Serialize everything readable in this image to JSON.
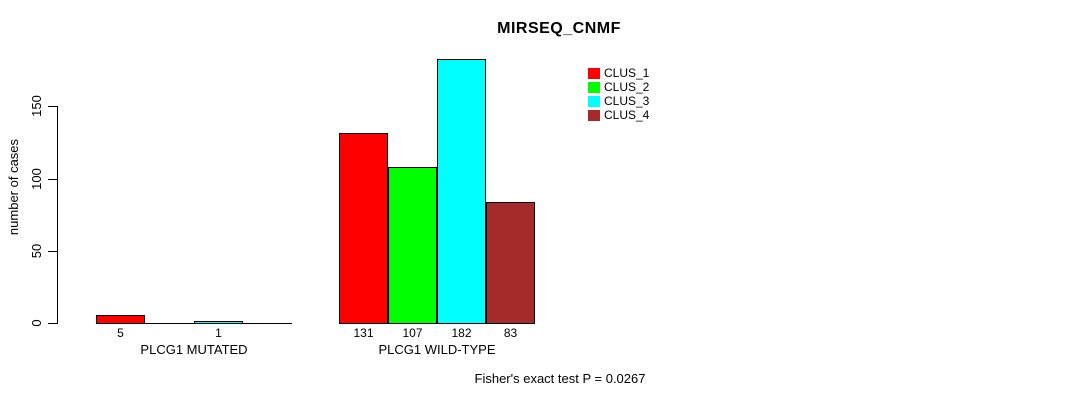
{
  "chart_data": {
    "type": "bar",
    "title": "MIRSEQ_CNMF",
    "ylabel": "number of cases",
    "xlabel": "",
    "groups": [
      "PLCG1 MUTATED",
      "PLCG1 WILD-TYPE"
    ],
    "series": [
      {
        "name": "CLUS_1",
        "color": "#ff0000",
        "values": [
          5,
          131
        ]
      },
      {
        "name": "CLUS_2",
        "color": "#00ff00",
        "values": [
          0,
          107
        ]
      },
      {
        "name": "CLUS_3",
        "color": "#00ffff",
        "values": [
          1,
          182
        ]
      },
      {
        "name": "CLUS_4",
        "color": "#a52a2a",
        "values": [
          0,
          83
        ]
      }
    ],
    "yticks": [
      0,
      50,
      100,
      150
    ],
    "ylim": [
      0,
      182
    ],
    "grid": false,
    "legend_position": "top-right",
    "bar_border_color": "#000000",
    "value_label_rule": "shown only for nonzero bars",
    "caption": "Fisher's exact test P = 0.0267"
  }
}
